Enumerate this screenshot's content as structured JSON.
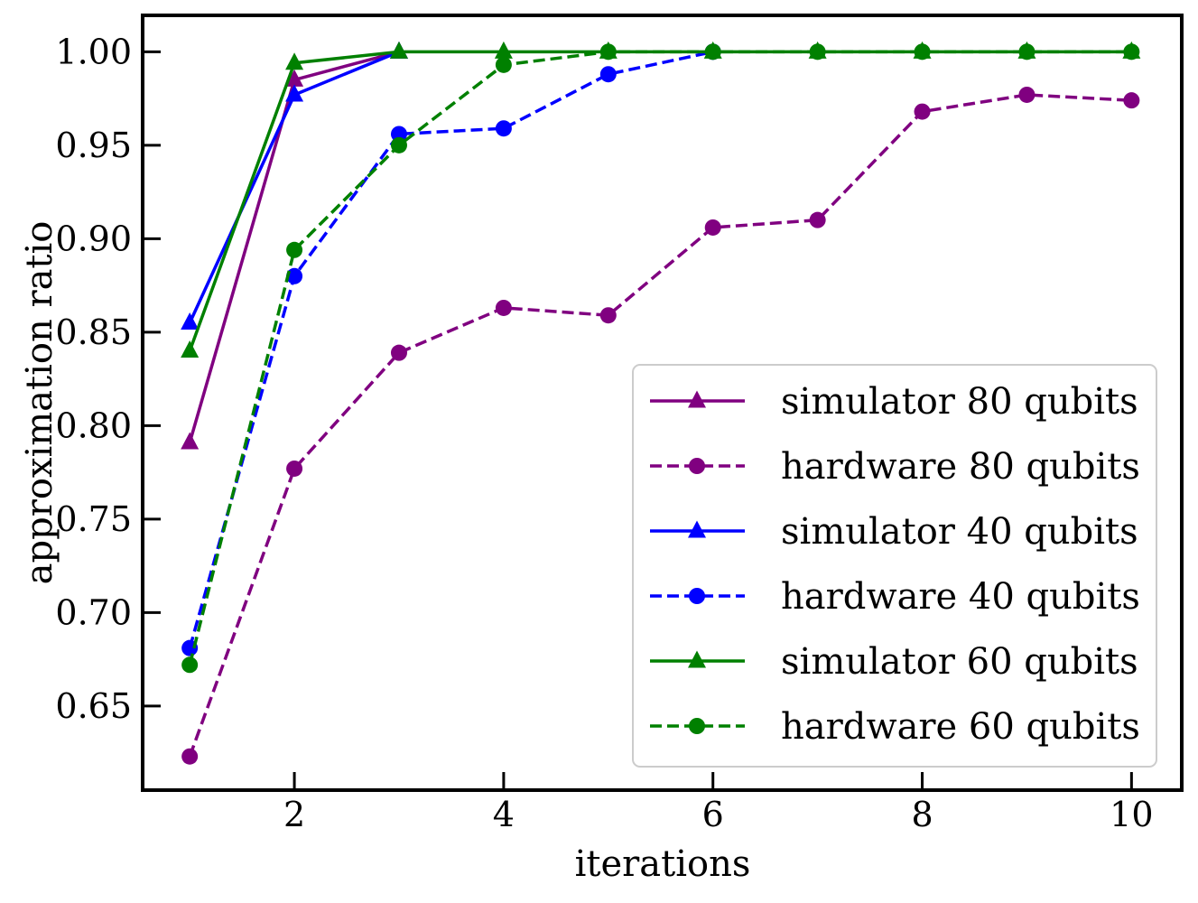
{
  "chart_data": {
    "type": "line",
    "title": "",
    "xlabel": "iterations",
    "ylabel": "approximation ratio",
    "xlim": [
      0.55,
      10.48
    ],
    "ylim": [
      0.605,
      1.0195
    ],
    "xticks": [
      2,
      4,
      6,
      8,
      10
    ],
    "yticks": [
      0.65,
      0.7,
      0.75,
      0.8,
      0.85,
      0.9,
      0.95,
      1.0
    ],
    "ytick_labels": [
      "0.65",
      "0.70",
      "0.75",
      "0.80",
      "0.85",
      "0.90",
      "0.95",
      "1.00"
    ],
    "grid": false,
    "legend_position": "lower-right",
    "series": [
      {
        "name": "simulator 80 qubits",
        "color": "#800080",
        "dash": "solid",
        "marker": "triangle",
        "x": [
          1,
          2,
          3
        ],
        "y": [
          0.791,
          0.985,
          1.0
        ]
      },
      {
        "name": "hardware 80 qubits",
        "color": "#800080",
        "dash": "dashed",
        "marker": "circle",
        "x": [
          1,
          2,
          3,
          4,
          5,
          6,
          7,
          8,
          9,
          10
        ],
        "y": [
          0.623,
          0.777,
          0.839,
          0.863,
          0.859,
          0.906,
          0.91,
          0.968,
          0.977,
          0.974
        ]
      },
      {
        "name": "simulator 40 qubits",
        "color": "#0000ff",
        "dash": "solid",
        "marker": "triangle",
        "x": [
          1,
          2,
          3
        ],
        "y": [
          0.855,
          0.977,
          1.0
        ]
      },
      {
        "name": "hardware 40 qubits",
        "color": "#0000ff",
        "dash": "dashed",
        "marker": "circle",
        "x": [
          1,
          2,
          3,
          4,
          5,
          6
        ],
        "y": [
          0.681,
          0.88,
          0.956,
          0.959,
          0.988,
          1.0
        ]
      },
      {
        "name": "simulator 60 qubits",
        "color": "#008000",
        "dash": "solid",
        "marker": "triangle",
        "x": [
          1,
          2,
          3,
          4,
          5,
          6,
          7,
          8,
          9,
          10
        ],
        "y": [
          0.84,
          0.994,
          1.0,
          1.0,
          1.0,
          1.0,
          1.0,
          1.0,
          1.0,
          1.0
        ]
      },
      {
        "name": "hardware 60 qubits",
        "color": "#008000",
        "dash": "dashed",
        "marker": "circle",
        "x": [
          1,
          2,
          3,
          4,
          5,
          6,
          7,
          8,
          9,
          10
        ],
        "y": [
          0.672,
          0.894,
          0.95,
          0.993,
          1.0,
          1.0,
          1.0,
          1.0,
          1.0,
          1.0
        ]
      }
    ]
  }
}
